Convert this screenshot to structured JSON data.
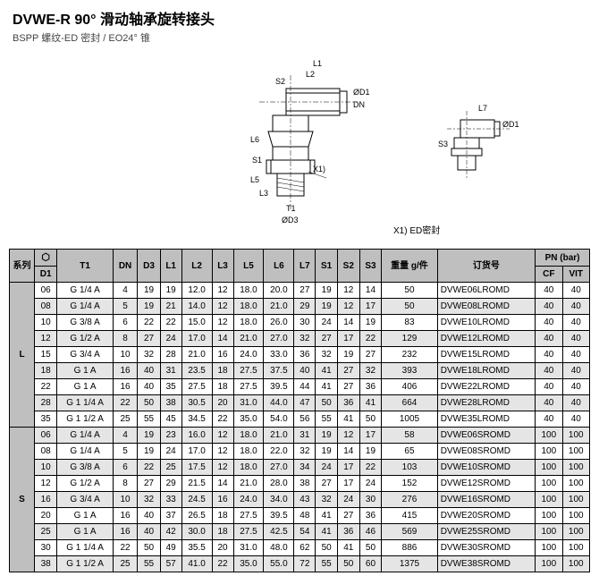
{
  "header": {
    "title": "DVWE-R 90° 滑动轴承旋转接头",
    "subtitle": "BSPP 螺纹-ED 密封 / EO24° 锥"
  },
  "diagram": {
    "x1_label": "X1) ED密封",
    "x1_pointer": "X1)",
    "dims_main": [
      "L1",
      "L2",
      "S2",
      "ØD1",
      "DN",
      "L6",
      "S1",
      "L5",
      "L3",
      "T1",
      "ØD3"
    ],
    "dims_side": [
      "L7",
      "S3",
      "ØD1"
    ]
  },
  "table": {
    "headers": {
      "series": "系列",
      "d1": "D1",
      "t1": "T1",
      "dn": "DN",
      "d3": "D3",
      "l1": "L1",
      "l2": "L2",
      "l3": "L3",
      "l5": "L5",
      "l6": "L6",
      "l7": "L7",
      "s1": "S1",
      "s2": "S2",
      "s3": "S3",
      "weight": "重量 g/件",
      "order": "订货号",
      "pn": "PN (bar)",
      "cf": "CF",
      "vit": "VIT"
    },
    "groups": [
      {
        "series": "L",
        "rows": [
          {
            "d1": "06",
            "t1": "G 1/4 A",
            "dn": "4",
            "d3": "19",
            "l1": "19",
            "l2": "12.0",
            "l3": "12",
            "l5": "18.0",
            "l6": "20.0",
            "l7": "27",
            "s1": "19",
            "s2": "12",
            "s3": "14",
            "w": "50",
            "ord": "DVWE06LROMD",
            "cf": "40",
            "vit": "40"
          },
          {
            "d1": "08",
            "t1": "G 1/4 A",
            "dn": "5",
            "d3": "19",
            "l1": "21",
            "l2": "14.0",
            "l3": "12",
            "l5": "18.0",
            "l6": "21.0",
            "l7": "29",
            "s1": "19",
            "s2": "12",
            "s3": "17",
            "w": "50",
            "ord": "DVWE08LROMD",
            "cf": "40",
            "vit": "40"
          },
          {
            "d1": "10",
            "t1": "G 3/8 A",
            "dn": "6",
            "d3": "22",
            "l1": "22",
            "l2": "15.0",
            "l3": "12",
            "l5": "18.0",
            "l6": "26.0",
            "l7": "30",
            "s1": "24",
            "s2": "14",
            "s3": "19",
            "w": "83",
            "ord": "DVWE10LROMD",
            "cf": "40",
            "vit": "40"
          },
          {
            "d1": "12",
            "t1": "G 1/2 A",
            "dn": "8",
            "d3": "27",
            "l1": "24",
            "l2": "17.0",
            "l3": "14",
            "l5": "21.0",
            "l6": "27.0",
            "l7": "32",
            "s1": "27",
            "s2": "17",
            "s3": "22",
            "w": "129",
            "ord": "DVWE12LROMD",
            "cf": "40",
            "vit": "40"
          },
          {
            "d1": "15",
            "t1": "G 3/4 A",
            "dn": "10",
            "d3": "32",
            "l1": "28",
            "l2": "21.0",
            "l3": "16",
            "l5": "24.0",
            "l6": "33.0",
            "l7": "36",
            "s1": "32",
            "s2": "19",
            "s3": "27",
            "w": "232",
            "ord": "DVWE15LROMD",
            "cf": "40",
            "vit": "40"
          },
          {
            "d1": "18",
            "t1": "G 1 A",
            "dn": "16",
            "d3": "40",
            "l1": "31",
            "l2": "23.5",
            "l3": "18",
            "l5": "27.5",
            "l6": "37.5",
            "l7": "40",
            "s1": "41",
            "s2": "27",
            "s3": "32",
            "w": "393",
            "ord": "DVWE18LROMD",
            "cf": "40",
            "vit": "40"
          },
          {
            "d1": "22",
            "t1": "G 1 A",
            "dn": "16",
            "d3": "40",
            "l1": "35",
            "l2": "27.5",
            "l3": "18",
            "l5": "27.5",
            "l6": "39.5",
            "l7": "44",
            "s1": "41",
            "s2": "27",
            "s3": "36",
            "w": "406",
            "ord": "DVWE22LROMD",
            "cf": "40",
            "vit": "40"
          },
          {
            "d1": "28",
            "t1": "G 1 1/4 A",
            "dn": "22",
            "d3": "50",
            "l1": "38",
            "l2": "30.5",
            "l3": "20",
            "l5": "31.0",
            "l6": "44.0",
            "l7": "47",
            "s1": "50",
            "s2": "36",
            "s3": "41",
            "w": "664",
            "ord": "DVWE28LROMD",
            "cf": "40",
            "vit": "40"
          },
          {
            "d1": "35",
            "t1": "G 1 1/2 A",
            "dn": "25",
            "d3": "55",
            "l1": "45",
            "l2": "34.5",
            "l3": "22",
            "l5": "35.0",
            "l6": "54.0",
            "l7": "56",
            "s1": "55",
            "s2": "41",
            "s3": "50",
            "w": "1005",
            "ord": "DVWE35LROMD",
            "cf": "40",
            "vit": "40"
          }
        ]
      },
      {
        "series": "S",
        "rows": [
          {
            "d1": "06",
            "t1": "G 1/4 A",
            "dn": "4",
            "d3": "19",
            "l1": "23",
            "l2": "16.0",
            "l3": "12",
            "l5": "18.0",
            "l6": "21.0",
            "l7": "31",
            "s1": "19",
            "s2": "12",
            "s3": "17",
            "w": "58",
            "ord": "DVWE06SROMD",
            "cf": "100",
            "vit": "100"
          },
          {
            "d1": "08",
            "t1": "G 1/4 A",
            "dn": "5",
            "d3": "19",
            "l1": "24",
            "l2": "17.0",
            "l3": "12",
            "l5": "18.0",
            "l6": "22.0",
            "l7": "32",
            "s1": "19",
            "s2": "14",
            "s3": "19",
            "w": "65",
            "ord": "DVWE08SROMD",
            "cf": "100",
            "vit": "100"
          },
          {
            "d1": "10",
            "t1": "G 3/8 A",
            "dn": "6",
            "d3": "22",
            "l1": "25",
            "l2": "17.5",
            "l3": "12",
            "l5": "18.0",
            "l6": "27.0",
            "l7": "34",
            "s1": "24",
            "s2": "17",
            "s3": "22",
            "w": "103",
            "ord": "DVWE10SROMD",
            "cf": "100",
            "vit": "100"
          },
          {
            "d1": "12",
            "t1": "G 1/2 A",
            "dn": "8",
            "d3": "27",
            "l1": "29",
            "l2": "21.5",
            "l3": "14",
            "l5": "21.0",
            "l6": "28.0",
            "l7": "38",
            "s1": "27",
            "s2": "17",
            "s3": "24",
            "w": "152",
            "ord": "DVWE12SROMD",
            "cf": "100",
            "vit": "100"
          },
          {
            "d1": "16",
            "t1": "G 3/4 A",
            "dn": "10",
            "d3": "32",
            "l1": "33",
            "l2": "24.5",
            "l3": "16",
            "l5": "24.0",
            "l6": "34.0",
            "l7": "43",
            "s1": "32",
            "s2": "24",
            "s3": "30",
            "w": "276",
            "ord": "DVWE16SROMD",
            "cf": "100",
            "vit": "100"
          },
          {
            "d1": "20",
            "t1": "G 1 A",
            "dn": "16",
            "d3": "40",
            "l1": "37",
            "l2": "26.5",
            "l3": "18",
            "l5": "27.5",
            "l6": "39.5",
            "l7": "48",
            "s1": "41",
            "s2": "27",
            "s3": "36",
            "w": "415",
            "ord": "DVWE20SROMD",
            "cf": "100",
            "vit": "100"
          },
          {
            "d1": "25",
            "t1": "G 1 A",
            "dn": "16",
            "d3": "40",
            "l1": "42",
            "l2": "30.0",
            "l3": "18",
            "l5": "27.5",
            "l6": "42.5",
            "l7": "54",
            "s1": "41",
            "s2": "36",
            "s3": "46",
            "w": "569",
            "ord": "DVWE25SROMD",
            "cf": "100",
            "vit": "100"
          },
          {
            "d1": "30",
            "t1": "G 1 1/4 A",
            "dn": "22",
            "d3": "50",
            "l1": "49",
            "l2": "35.5",
            "l3": "20",
            "l5": "31.0",
            "l6": "48.0",
            "l7": "62",
            "s1": "50",
            "s2": "41",
            "s3": "50",
            "w": "886",
            "ord": "DVWE30SROMD",
            "cf": "100",
            "vit": "100"
          },
          {
            "d1": "38",
            "t1": "G 1 1/2 A",
            "dn": "25",
            "d3": "55",
            "l1": "57",
            "l2": "41.0",
            "l3": "22",
            "l5": "35.0",
            "l6": "55.0",
            "l7": "72",
            "s1": "55",
            "s2": "50",
            "s3": "60",
            "w": "1375",
            "ord": "DVWE38SROMD",
            "cf": "100",
            "vit": "100"
          }
        ]
      }
    ]
  }
}
